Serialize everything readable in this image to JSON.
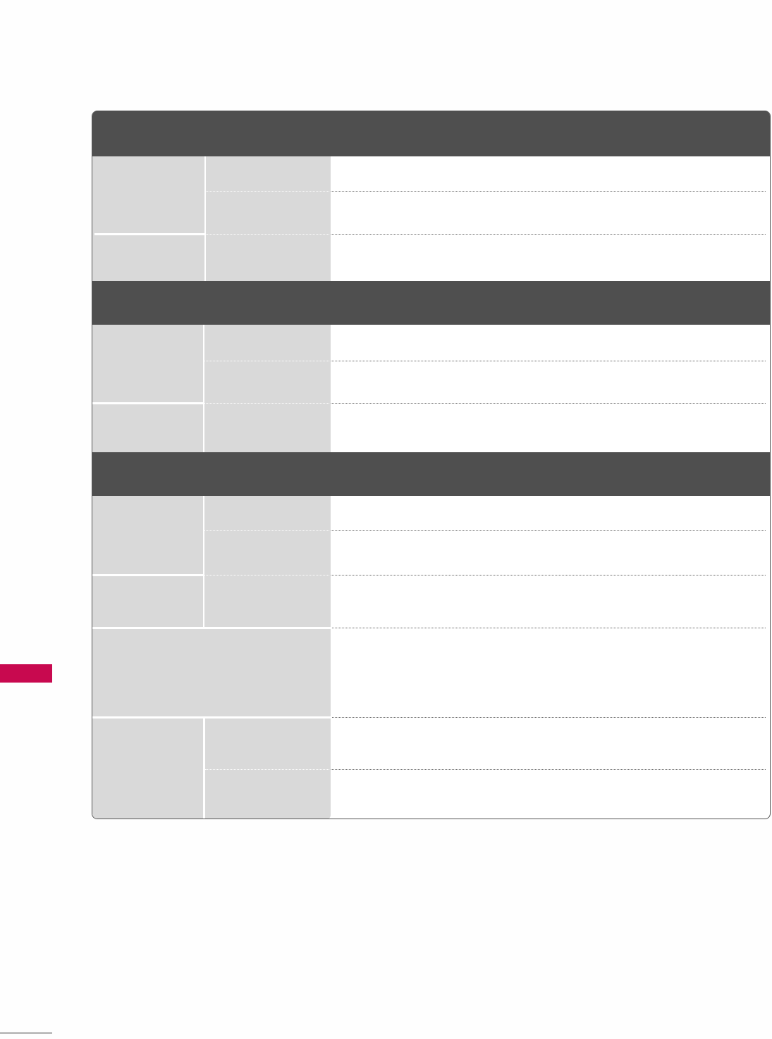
{
  "colors": {
    "header_band": "#4f4f4f",
    "label_cell": "#d9d9d9",
    "chapter_tab": "#c8094f"
  },
  "sections": [
    {
      "header": "",
      "rows": 3
    },
    {
      "header": "",
      "rows": 3
    },
    {
      "header": "",
      "rows": 6
    }
  ]
}
